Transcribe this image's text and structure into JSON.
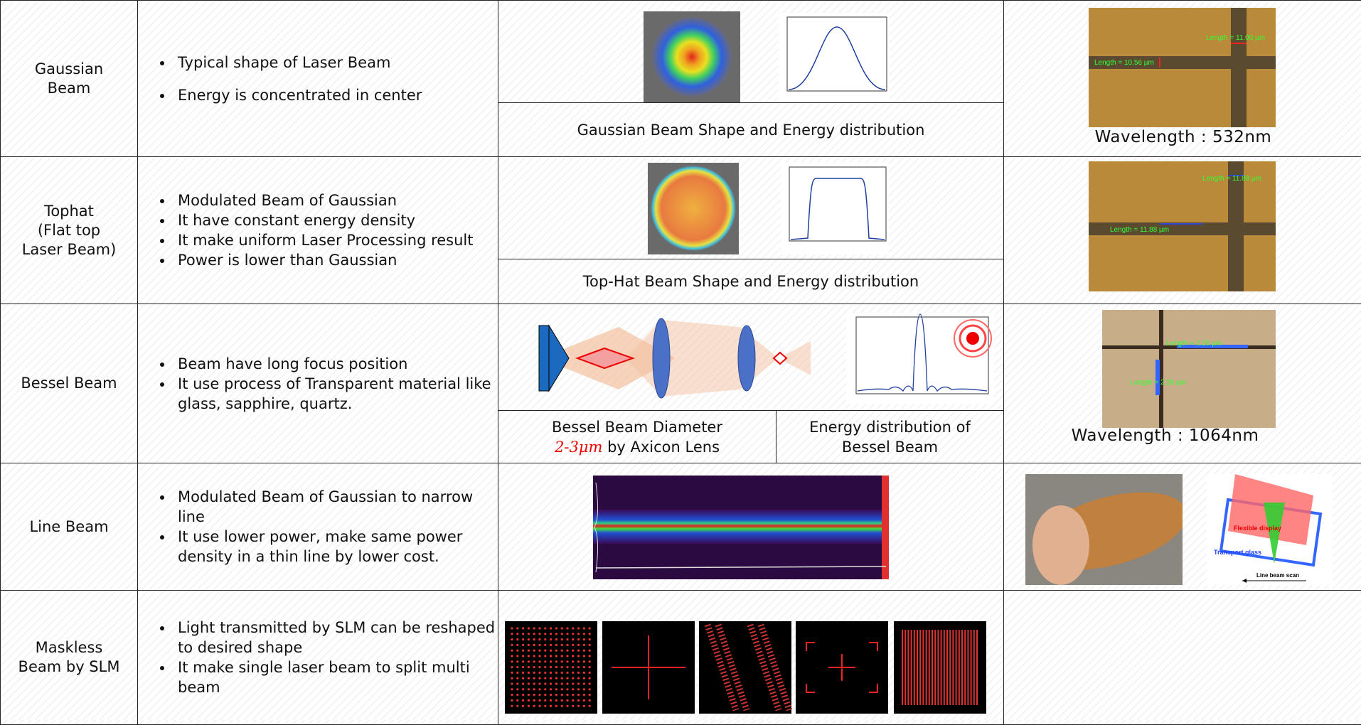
{
  "rows": [
    {
      "name": [
        "Gaussian",
        "Beam"
      ],
      "bullets": [
        "Typical shape of Laser Beam",
        "Energy is concentrated in center"
      ]
    },
    {
      "name": [
        "Tophat",
        "(Flat top",
        "Laser Beam)"
      ],
      "bullets": [
        "Modulated Beam of Gaussian",
        "It have constant energy density",
        "It make uniform Laser Processing result",
        "Power is lower than Gaussian"
      ]
    },
    {
      "name": [
        "Bessel Beam"
      ],
      "bullets": [
        "Beam have long focus position",
        "It use process of Transparent material like glass, sapphire, quartz."
      ]
    },
    {
      "name": [
        "Line Beam"
      ],
      "bullets": [
        "Modulated Beam of Gaussian to narrow line",
        "It use lower power, make same power density in a thin line by lower cost."
      ]
    },
    {
      "name": [
        "Maskless",
        "Beam by SLM"
      ],
      "bullets": [
        "Light transmitted by SLM can be reshaped to desired shape",
        "It make single laser beam to split multi beam"
      ]
    }
  ],
  "captions": {
    "gaussian": "Gaussian Beam Shape and Energy distribution",
    "tophat": "Top-Hat Beam Shape and Energy distribution",
    "bessel_diameter": {
      "line1": "Bessel Beam Diameter",
      "highlight": "2-3μm",
      "rest": "by  Axicon Lens"
    },
    "bessel_energy": [
      "Energy distribution of",
      "Bessel Beam"
    ]
  },
  "wavelengths": {
    "gaussian": "Wavelength : 532nm",
    "bessel": "Wavelength : 1064nm"
  },
  "measurements": {
    "gaussian": [
      "Length = 10.56 µm",
      "Length = 11.00 µm"
    ],
    "tophat": [
      "Length = 11.88 µm",
      "Length = 11.88 µm"
    ],
    "bessel": [
      "Length = 2.20 µm",
      "Length = 2.20 µm"
    ]
  },
  "line_beam_diagram": {
    "film": "Flexible display",
    "glass": "Transport glass",
    "scan": "Line beam scan"
  }
}
